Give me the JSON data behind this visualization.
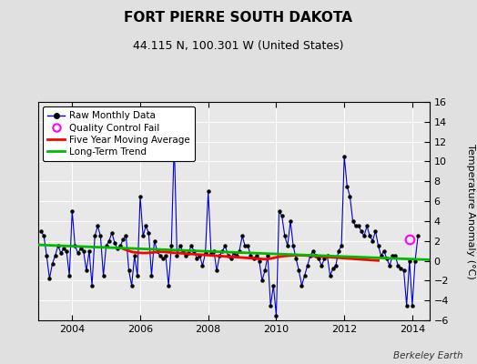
{
  "title": "FORT PIERRE SOUTH DAKOTA",
  "subtitle": "44.115 N, 100.301 W (United States)",
  "ylabel": "Temperature Anomaly (°C)",
  "credit": "Berkeley Earth",
  "ylim": [
    -6,
    16
  ],
  "yticks": [
    -6,
    -4,
    -2,
    0,
    2,
    4,
    6,
    8,
    10,
    12,
    14,
    16
  ],
  "xlim": [
    2003.0,
    2014.5
  ],
  "xticks": [
    2004,
    2006,
    2008,
    2010,
    2012,
    2014
  ],
  "fig_bg_color": "#e0e0e0",
  "plot_bg_color": "#e8e8e8",
  "raw_color": "#0000cc",
  "ma_color": "#ff0000",
  "trend_color": "#00bb00",
  "qc_color": "#ff00ff",
  "raw_data_x": [
    2003.083,
    2003.167,
    2003.25,
    2003.333,
    2003.417,
    2003.5,
    2003.583,
    2003.667,
    2003.75,
    2003.833,
    2003.917,
    2004.0,
    2004.083,
    2004.167,
    2004.25,
    2004.333,
    2004.417,
    2004.5,
    2004.583,
    2004.667,
    2004.75,
    2004.833,
    2004.917,
    2005.0,
    2005.083,
    2005.167,
    2005.25,
    2005.333,
    2005.417,
    2005.5,
    2005.583,
    2005.667,
    2005.75,
    2005.833,
    2005.917,
    2006.0,
    2006.083,
    2006.167,
    2006.25,
    2006.333,
    2006.417,
    2006.5,
    2006.583,
    2006.667,
    2006.75,
    2006.833,
    2006.917,
    2007.0,
    2007.083,
    2007.167,
    2007.25,
    2007.333,
    2007.417,
    2007.5,
    2007.583,
    2007.667,
    2007.75,
    2007.833,
    2007.917,
    2008.0,
    2008.083,
    2008.167,
    2008.25,
    2008.333,
    2008.417,
    2008.5,
    2008.583,
    2008.667,
    2008.75,
    2008.833,
    2008.917,
    2009.0,
    2009.083,
    2009.167,
    2009.25,
    2009.333,
    2009.417,
    2009.5,
    2009.583,
    2009.667,
    2009.75,
    2009.833,
    2009.917,
    2010.0,
    2010.083,
    2010.167,
    2010.25,
    2010.333,
    2010.417,
    2010.5,
    2010.583,
    2010.667,
    2010.75,
    2010.833,
    2010.917,
    2011.0,
    2011.083,
    2011.167,
    2011.25,
    2011.333,
    2011.417,
    2011.5,
    2011.583,
    2011.667,
    2011.75,
    2011.833,
    2011.917,
    2012.0,
    2012.083,
    2012.167,
    2012.25,
    2012.333,
    2012.417,
    2012.5,
    2012.583,
    2012.667,
    2012.75,
    2012.833,
    2012.917,
    2013.0,
    2013.083,
    2013.167,
    2013.25,
    2013.333,
    2013.417,
    2013.5,
    2013.583,
    2013.667,
    2013.75,
    2013.833,
    2013.917,
    2014.0,
    2014.083,
    2014.167
  ],
  "raw_data_y": [
    3.0,
    2.5,
    0.5,
    -1.8,
    -0.3,
    0.5,
    1.5,
    0.8,
    1.2,
    1.0,
    -1.5,
    5.0,
    1.5,
    0.8,
    1.2,
    1.0,
    -1.0,
    1.0,
    -2.5,
    2.5,
    3.5,
    2.5,
    -1.5,
    1.5,
    2.0,
    2.8,
    1.8,
    1.2,
    1.5,
    2.2,
    2.5,
    -1.0,
    -2.5,
    0.5,
    -1.5,
    6.5,
    2.5,
    3.5,
    2.8,
    -1.5,
    2.0,
    1.0,
    0.5,
    0.2,
    0.5,
    -2.5,
    1.5,
    12.0,
    0.5,
    1.5,
    1.0,
    0.5,
    0.8,
    1.5,
    1.0,
    0.2,
    0.5,
    -0.5,
    0.8,
    7.0,
    0.8,
    1.0,
    -1.0,
    0.5,
    1.0,
    1.5,
    0.5,
    0.2,
    0.8,
    0.5,
    1.0,
    2.5,
    1.5,
    1.5,
    0.5,
    0.2,
    0.5,
    0.0,
    -2.0,
    -1.0,
    0.5,
    -4.5,
    -2.5,
    -5.5,
    5.0,
    4.5,
    2.5,
    1.5,
    4.0,
    1.5,
    0.2,
    -1.0,
    -2.5,
    -1.5,
    -0.5,
    0.5,
    1.0,
    0.5,
    0.2,
    -0.5,
    0.2,
    0.5,
    -1.5,
    -0.8,
    -0.5,
    1.0,
    1.5,
    10.5,
    7.5,
    6.5,
    4.0,
    3.5,
    3.5,
    3.0,
    2.5,
    3.5,
    2.5,
    2.0,
    3.0,
    1.5,
    0.5,
    1.0,
    0.2,
    -0.5,
    0.5,
    0.5,
    -0.5,
    -0.8,
    -1.0,
    -4.5,
    0.0,
    -4.5,
    0.0,
    2.5
  ],
  "ma_data_x": [
    2005.5,
    2005.583,
    2005.667,
    2005.75,
    2005.833,
    2005.917,
    2006.0,
    2006.083,
    2006.167,
    2006.25,
    2006.333,
    2006.417,
    2006.5,
    2006.583,
    2006.667,
    2006.75,
    2006.833,
    2006.917,
    2007.0,
    2007.083,
    2007.167,
    2007.25,
    2007.333,
    2007.417,
    2007.5,
    2007.583,
    2007.667,
    2007.75,
    2007.833,
    2007.917,
    2008.0,
    2008.083,
    2008.167,
    2008.25,
    2008.333,
    2008.417,
    2008.5,
    2008.583,
    2008.667,
    2008.75,
    2008.833,
    2008.917,
    2009.0,
    2009.083,
    2009.167,
    2009.25,
    2009.333,
    2009.417,
    2009.5,
    2009.583,
    2009.667,
    2009.75,
    2009.833,
    2009.917,
    2010.0,
    2010.083,
    2010.167,
    2010.25,
    2010.333,
    2010.417,
    2010.5,
    2010.583,
    2010.667,
    2010.75,
    2010.833,
    2010.917,
    2011.0,
    2011.083,
    2011.167,
    2011.25,
    2011.333,
    2011.417,
    2011.5,
    2011.583,
    2011.667,
    2011.75,
    2011.833,
    2011.917,
    2012.0,
    2012.083,
    2012.167,
    2012.25,
    2012.333,
    2012.417,
    2012.5,
    2012.583,
    2012.667,
    2012.75,
    2012.833,
    2012.917,
    2013.0
  ],
  "ma_data_y": [
    1.2,
    1.1,
    1.0,
    0.9,
    0.85,
    0.82,
    0.8,
    0.78,
    0.78,
    0.8,
    0.82,
    0.85,
    0.88,
    0.9,
    0.9,
    0.88,
    0.85,
    0.82,
    0.8,
    0.78,
    0.76,
    0.74,
    0.72,
    0.7,
    0.68,
    0.66,
    0.64,
    0.62,
    0.6,
    0.58,
    0.56,
    0.54,
    0.52,
    0.5,
    0.48,
    0.46,
    0.44,
    0.42,
    0.4,
    0.38,
    0.36,
    0.34,
    0.32,
    0.3,
    0.28,
    0.26,
    0.24,
    0.22,
    0.2,
    0.18,
    0.16,
    0.18,
    0.22,
    0.28,
    0.35,
    0.4,
    0.45,
    0.48,
    0.5,
    0.52,
    0.54,
    0.55,
    0.56,
    0.55,
    0.54,
    0.52,
    0.5,
    0.48,
    0.46,
    0.44,
    0.42,
    0.4,
    0.38,
    0.36,
    0.34,
    0.32,
    0.3,
    0.28,
    0.26,
    0.24,
    0.22,
    0.2,
    0.18,
    0.16,
    0.14,
    0.12,
    0.1,
    0.08,
    0.06,
    0.04,
    0.02
  ],
  "trend_x": [
    2003.0,
    2014.5
  ],
  "trend_y": [
    1.6,
    0.1
  ],
  "qc_x": [
    2013.917
  ],
  "qc_y": [
    2.2
  ]
}
